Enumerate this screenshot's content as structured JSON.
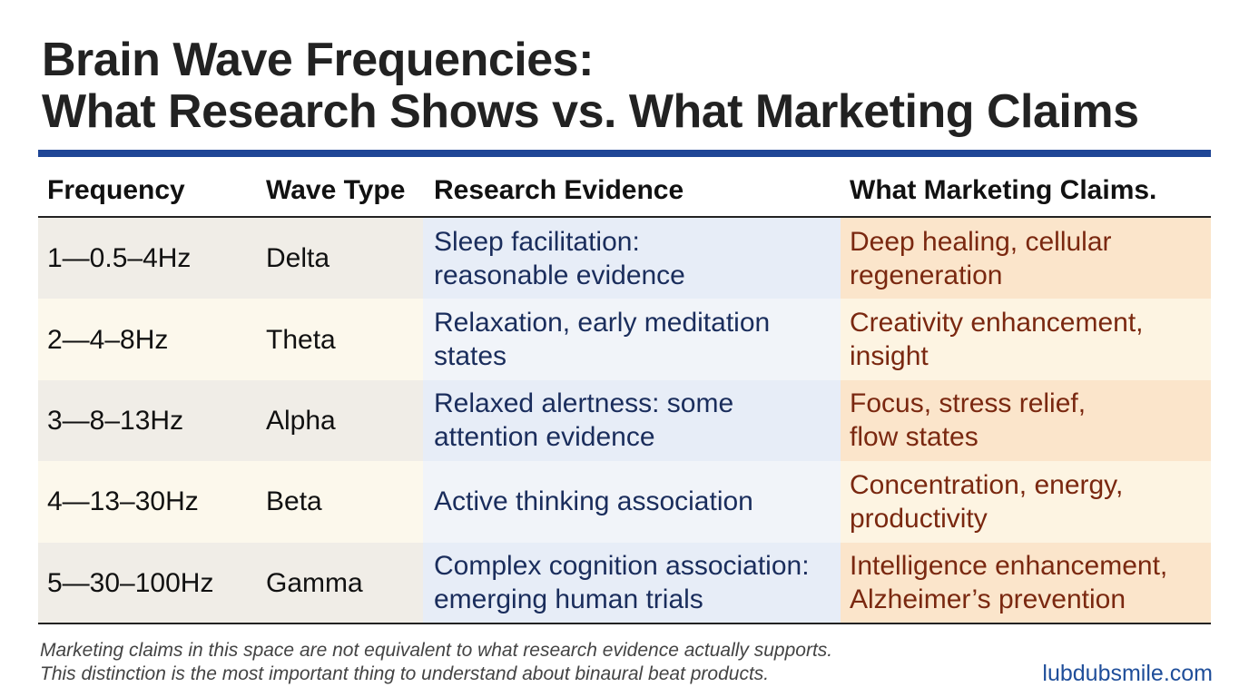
{
  "header": {
    "title": [
      "Brain Wave Frequencies:",
      "What Research Shows vs. What Marketing Claims"
    ]
  },
  "table": {
    "columns": [
      "Frequency",
      "Wave Type",
      "Research Evidence",
      "What Marketing Claims."
    ],
    "rows": [
      {
        "frequency": "1—0.5–4Hz",
        "wave": "Delta",
        "research": [
          "Sleep facilitation:",
          "reasonable evidence"
        ],
        "marketing": [
          "Deep healing, cellular",
          "regeneration"
        ]
      },
      {
        "frequency": "2—4–8Hz",
        "wave": "Theta",
        "research": [
          "Relaxation, early meditation",
          "states"
        ],
        "marketing": [
          "Creativity enhancement,",
          "insight"
        ]
      },
      {
        "frequency": "3—8–13Hz",
        "wave": "Alpha",
        "research": [
          "Relaxed alertness: some",
          "attention evidence"
        ],
        "marketing": [
          "Focus, stress relief,",
          "flow states"
        ]
      },
      {
        "frequency": "4—13–30Hz",
        "wave": "Beta",
        "research": [
          "Active thinking association"
        ],
        "marketing": [
          "Concentration, energy,",
          "productivity"
        ]
      },
      {
        "frequency": "5—30–100Hz",
        "wave": "Gamma",
        "research": [
          "Complex cognition association:",
          "emerging human trials"
        ],
        "marketing": [
          "Intelligence enhancement,",
          "Alzheimer’s prevention"
        ]
      }
    ]
  },
  "footer": {
    "note": [
      "Marketing claims in this space are not equivalent to what research evidence actually supports.",
      "This distinction is the most important thing to understand about binaural beat products."
    ],
    "brand": "lubdubsmile.com"
  }
}
